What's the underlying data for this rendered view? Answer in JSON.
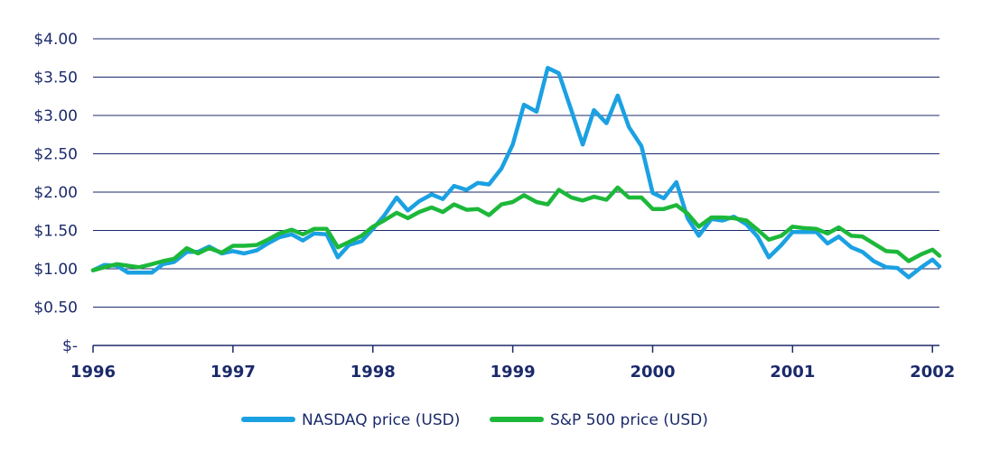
{
  "chart_data": {
    "type": "line",
    "title": "",
    "xlabel": "",
    "ylabel": "",
    "xlim": [
      1996.0,
      2002.05
    ],
    "ylim": [
      0,
      4.0
    ],
    "x_ticks": [
      "1996",
      "1997",
      "1998",
      "1999",
      "2000",
      "2001",
      "2002"
    ],
    "y_ticks": [
      {
        "value": 4.0,
        "label": "$4.00"
      },
      {
        "value": 3.5,
        "label": "$3.50"
      },
      {
        "value": 3.0,
        "label": "$3.00"
      },
      {
        "value": 2.5,
        "label": "$2.50"
      },
      {
        "value": 2.0,
        "label": "$2.00"
      },
      {
        "value": 1.5,
        "label": "$1.50"
      },
      {
        "value": 1.0,
        "label": "$1.00"
      },
      {
        "value": 0.5,
        "label": "$0.50"
      },
      {
        "value": 0.0,
        "label": "$-"
      }
    ],
    "grid": "horizontal",
    "legend_position": "bottom-center",
    "series": [
      {
        "name": "NASDAQ price (USD)",
        "color": "#1ba1e2",
        "points": [
          [
            1996.0,
            0.98
          ],
          [
            1996.08,
            1.05
          ],
          [
            1996.17,
            1.04
          ],
          [
            1996.25,
            0.95
          ],
          [
            1996.33,
            0.95
          ],
          [
            1996.42,
            0.95
          ],
          [
            1996.5,
            1.06
          ],
          [
            1996.58,
            1.09
          ],
          [
            1996.67,
            1.22
          ],
          [
            1996.75,
            1.22
          ],
          [
            1996.83,
            1.29
          ],
          [
            1996.92,
            1.2
          ],
          [
            1997.0,
            1.23
          ],
          [
            1997.08,
            1.2
          ],
          [
            1997.17,
            1.24
          ],
          [
            1997.25,
            1.33
          ],
          [
            1997.33,
            1.41
          ],
          [
            1997.42,
            1.45
          ],
          [
            1997.5,
            1.37
          ],
          [
            1997.58,
            1.46
          ],
          [
            1997.67,
            1.45
          ],
          [
            1997.75,
            1.15
          ],
          [
            1997.83,
            1.31
          ],
          [
            1997.92,
            1.36
          ],
          [
            1998.0,
            1.52
          ],
          [
            1998.08,
            1.69
          ],
          [
            1998.17,
            1.93
          ],
          [
            1998.25,
            1.76
          ],
          [
            1998.33,
            1.88
          ],
          [
            1998.42,
            1.97
          ],
          [
            1998.5,
            1.91
          ],
          [
            1998.58,
            2.08
          ],
          [
            1998.67,
            2.03
          ],
          [
            1998.75,
            2.12
          ],
          [
            1998.83,
            2.1
          ],
          [
            1998.92,
            2.31
          ],
          [
            1999.0,
            2.62
          ],
          [
            1999.08,
            3.14
          ],
          [
            1999.17,
            3.05
          ],
          [
            1999.25,
            3.62
          ],
          [
            1999.33,
            3.55
          ],
          [
            1999.42,
            3.06
          ],
          [
            1999.5,
            2.62
          ],
          [
            1999.58,
            3.07
          ],
          [
            1999.67,
            2.9
          ],
          [
            1999.75,
            3.26
          ],
          [
            1999.83,
            2.85
          ],
          [
            1999.92,
            2.6
          ],
          [
            2000.0,
            1.99
          ],
          [
            2000.08,
            1.92
          ],
          [
            2000.17,
            2.13
          ],
          [
            2000.25,
            1.66
          ],
          [
            2000.33,
            1.43
          ],
          [
            2000.42,
            1.65
          ],
          [
            2000.5,
            1.63
          ],
          [
            2000.58,
            1.68
          ],
          [
            2000.67,
            1.58
          ],
          [
            2000.75,
            1.42
          ],
          [
            2000.83,
            1.15
          ],
          [
            2000.92,
            1.31
          ],
          [
            2001.0,
            1.48
          ],
          [
            2001.08,
            1.48
          ],
          [
            2001.17,
            1.48
          ],
          [
            2001.25,
            1.33
          ],
          [
            2001.33,
            1.42
          ],
          [
            2001.42,
            1.28
          ],
          [
            2001.5,
            1.22
          ],
          [
            2001.58,
            1.1
          ],
          [
            2001.67,
            1.02
          ],
          [
            2001.75,
            1.01
          ],
          [
            2001.83,
            0.89
          ],
          [
            2001.92,
            1.02
          ],
          [
            2002.0,
            1.12
          ],
          [
            2002.05,
            1.03
          ]
        ]
      },
      {
        "name": "S&P 500 price (USD)",
        "color": "#1db83a",
        "points": [
          [
            1996.0,
            0.98
          ],
          [
            1996.08,
            1.02
          ],
          [
            1996.17,
            1.06
          ],
          [
            1996.25,
            1.04
          ],
          [
            1996.33,
            1.02
          ],
          [
            1996.42,
            1.06
          ],
          [
            1996.5,
            1.1
          ],
          [
            1996.58,
            1.13
          ],
          [
            1996.67,
            1.27
          ],
          [
            1996.75,
            1.2
          ],
          [
            1996.83,
            1.27
          ],
          [
            1996.92,
            1.21
          ],
          [
            1997.0,
            1.3
          ],
          [
            1997.08,
            1.3
          ],
          [
            1997.17,
            1.31
          ],
          [
            1997.25,
            1.38
          ],
          [
            1997.33,
            1.46
          ],
          [
            1997.42,
            1.51
          ],
          [
            1997.5,
            1.45
          ],
          [
            1997.58,
            1.52
          ],
          [
            1997.67,
            1.52
          ],
          [
            1997.75,
            1.28
          ],
          [
            1997.83,
            1.35
          ],
          [
            1997.92,
            1.43
          ],
          [
            1998.0,
            1.55
          ],
          [
            1998.08,
            1.63
          ],
          [
            1998.17,
            1.73
          ],
          [
            1998.25,
            1.66
          ],
          [
            1998.33,
            1.74
          ],
          [
            1998.42,
            1.8
          ],
          [
            1998.5,
            1.74
          ],
          [
            1998.58,
            1.84
          ],
          [
            1998.67,
            1.77
          ],
          [
            1998.75,
            1.78
          ],
          [
            1998.83,
            1.7
          ],
          [
            1998.92,
            1.84
          ],
          [
            1999.0,
            1.87
          ],
          [
            1999.08,
            1.96
          ],
          [
            1999.17,
            1.87
          ],
          [
            1999.25,
            1.84
          ],
          [
            1999.33,
            2.03
          ],
          [
            1999.42,
            1.93
          ],
          [
            1999.5,
            1.89
          ],
          [
            1999.58,
            1.94
          ],
          [
            1999.67,
            1.9
          ],
          [
            1999.75,
            2.06
          ],
          [
            1999.83,
            1.93
          ],
          [
            1999.92,
            1.93
          ],
          [
            2000.0,
            1.78
          ],
          [
            2000.08,
            1.78
          ],
          [
            2000.17,
            1.83
          ],
          [
            2000.25,
            1.72
          ],
          [
            2000.33,
            1.55
          ],
          [
            2000.42,
            1.67
          ],
          [
            2000.5,
            1.67
          ],
          [
            2000.58,
            1.66
          ],
          [
            2000.67,
            1.63
          ],
          [
            2000.75,
            1.51
          ],
          [
            2000.83,
            1.38
          ],
          [
            2000.92,
            1.43
          ],
          [
            2001.0,
            1.55
          ],
          [
            2001.08,
            1.53
          ],
          [
            2001.17,
            1.52
          ],
          [
            2001.25,
            1.46
          ],
          [
            2001.33,
            1.54
          ],
          [
            2001.42,
            1.43
          ],
          [
            2001.5,
            1.42
          ],
          [
            2001.58,
            1.33
          ],
          [
            2001.67,
            1.23
          ],
          [
            2001.75,
            1.22
          ],
          [
            2001.83,
            1.1
          ],
          [
            2001.92,
            1.19
          ],
          [
            2002.0,
            1.25
          ],
          [
            2002.05,
            1.17
          ]
        ]
      }
    ]
  }
}
